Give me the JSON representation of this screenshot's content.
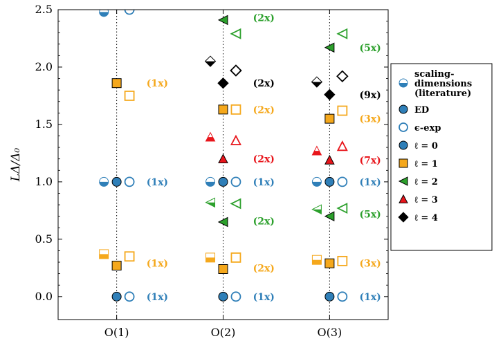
{
  "chart_data": {
    "type": "scatter",
    "ylabel": "LΔ/Δ₀",
    "ylim": [
      -0.2,
      2.5
    ],
    "xlim": [
      -0.55,
      2.55
    ],
    "yticks": [
      "0.0",
      "0.5",
      "1.0",
      "1.5",
      "2.0",
      "2.5"
    ],
    "ytick_values": [
      0.0,
      0.5,
      1.0,
      1.5,
      2.0,
      2.5
    ],
    "categories": [
      "O(1)",
      "O(2)",
      "O(3)"
    ],
    "grid": false,
    "legend_placement": "right, outside plot",
    "colors": {
      "l0": "#2f7fb8",
      "l1": "#f5a81c",
      "l2": "#2ca02c",
      "l3": "#e8151b",
      "l4": "#000000",
      "mult_blue": "#2f7fb8",
      "mult_orange": "#f5a81c",
      "mult_green": "#2ca02c",
      "mult_red": "#e8151b",
      "mult_black": "#000000"
    },
    "legend": [
      {
        "label_lines": [
          "scaling-",
          "dimensions",
          "(literature)"
        ],
        "marker": "half",
        "color": "l0"
      },
      {
        "label_lines": [
          "ED"
        ],
        "marker": "circle-filled",
        "color": "l0"
      },
      {
        "label_lines": [
          "ϵ-exp"
        ],
        "marker": "circle-open",
        "color": "l0"
      },
      {
        "label_lines": [
          "ℓ = 0"
        ],
        "marker": "circle-filled",
        "color": "l0"
      },
      {
        "label_lines": [
          "ℓ = 1"
        ],
        "marker": "square-filled",
        "color": "l1"
      },
      {
        "label_lines": [
          "ℓ = 2"
        ],
        "marker": "triangle-left-filled",
        "color": "l2"
      },
      {
        "label_lines": [
          "ℓ = 3"
        ],
        "marker": "triangle-up-filled",
        "color": "l3"
      },
      {
        "label_lines": [
          "ℓ = 4"
        ],
        "marker": "diamond-filled",
        "color": "l4"
      }
    ],
    "series": [
      {
        "source": "literature",
        "group": 0,
        "l": 0,
        "y": 1.0
      },
      {
        "source": "literature",
        "group": 0,
        "l": 1,
        "y": 0.37
      },
      {
        "source": "literature",
        "group": 0,
        "l": 0,
        "y": 2.48
      },
      {
        "source": "ED",
        "group": 0,
        "l": 0,
        "y": 0.0
      },
      {
        "source": "ED",
        "group": 0,
        "l": 0,
        "y": 1.0
      },
      {
        "source": "ED",
        "group": 0,
        "l": 1,
        "y": 0.27
      },
      {
        "source": "ED",
        "group": 0,
        "l": 1,
        "y": 1.86
      },
      {
        "source": "eps",
        "group": 0,
        "l": 0,
        "y": 0.0
      },
      {
        "source": "eps",
        "group": 0,
        "l": 0,
        "y": 1.0
      },
      {
        "source": "eps",
        "group": 0,
        "l": 1,
        "y": 0.35
      },
      {
        "source": "eps",
        "group": 0,
        "l": 1,
        "y": 1.75
      },
      {
        "source": "eps",
        "group": 0,
        "l": 0,
        "y": 2.5
      },
      {
        "source": "literature",
        "group": 1,
        "l": 0,
        "y": 1.0
      },
      {
        "source": "literature",
        "group": 1,
        "l": 1,
        "y": 0.34
      },
      {
        "source": "literature",
        "group": 1,
        "l": 2,
        "y": 0.82
      },
      {
        "source": "literature",
        "group": 1,
        "l": 3,
        "y": 1.39
      },
      {
        "source": "literature",
        "group": 1,
        "l": 4,
        "y": 2.05
      },
      {
        "source": "ED",
        "group": 1,
        "l": 0,
        "y": 0.0
      },
      {
        "source": "ED",
        "group": 1,
        "l": 0,
        "y": 1.0
      },
      {
        "source": "ED",
        "group": 1,
        "l": 1,
        "y": 0.24
      },
      {
        "source": "ED",
        "group": 1,
        "l": 1,
        "y": 1.63
      },
      {
        "source": "ED",
        "group": 1,
        "l": 2,
        "y": 0.65
      },
      {
        "source": "ED",
        "group": 1,
        "l": 2,
        "y": 2.41
      },
      {
        "source": "ED",
        "group": 1,
        "l": 3,
        "y": 1.2
      },
      {
        "source": "ED",
        "group": 1,
        "l": 4,
        "y": 1.86
      },
      {
        "source": "eps",
        "group": 1,
        "l": 0,
        "y": 0.0
      },
      {
        "source": "eps",
        "group": 1,
        "l": 0,
        "y": 1.0
      },
      {
        "source": "eps",
        "group": 1,
        "l": 1,
        "y": 0.34
      },
      {
        "source": "eps",
        "group": 1,
        "l": 1,
        "y": 1.63
      },
      {
        "source": "eps",
        "group": 1,
        "l": 2,
        "y": 0.81
      },
      {
        "source": "eps",
        "group": 1,
        "l": 2,
        "y": 2.29
      },
      {
        "source": "eps",
        "group": 1,
        "l": 3,
        "y": 1.36
      },
      {
        "source": "eps",
        "group": 1,
        "l": 4,
        "y": 1.97
      },
      {
        "source": "literature",
        "group": 2,
        "l": 0,
        "y": 1.0
      },
      {
        "source": "literature",
        "group": 2,
        "l": 1,
        "y": 0.32
      },
      {
        "source": "literature",
        "group": 2,
        "l": 2,
        "y": 0.76
      },
      {
        "source": "literature",
        "group": 2,
        "l": 3,
        "y": 1.27
      },
      {
        "source": "literature",
        "group": 2,
        "l": 4,
        "y": 1.87
      },
      {
        "source": "ED",
        "group": 2,
        "l": 0,
        "y": 0.0
      },
      {
        "source": "ED",
        "group": 2,
        "l": 0,
        "y": 1.0
      },
      {
        "source": "ED",
        "group": 2,
        "l": 1,
        "y": 0.29
      },
      {
        "source": "ED",
        "group": 2,
        "l": 1,
        "y": 1.55
      },
      {
        "source": "ED",
        "group": 2,
        "l": 2,
        "y": 0.7
      },
      {
        "source": "ED",
        "group": 2,
        "l": 2,
        "y": 2.17
      },
      {
        "source": "ED",
        "group": 2,
        "l": 3,
        "y": 1.19
      },
      {
        "source": "ED",
        "group": 2,
        "l": 4,
        "y": 1.76
      },
      {
        "source": "eps",
        "group": 2,
        "l": 0,
        "y": 0.0
      },
      {
        "source": "eps",
        "group": 2,
        "l": 0,
        "y": 1.0
      },
      {
        "source": "eps",
        "group": 2,
        "l": 1,
        "y": 0.31
      },
      {
        "source": "eps",
        "group": 2,
        "l": 1,
        "y": 1.62
      },
      {
        "source": "eps",
        "group": 2,
        "l": 2,
        "y": 0.77
      },
      {
        "source": "eps",
        "group": 2,
        "l": 2,
        "y": 2.29
      },
      {
        "source": "eps",
        "group": 2,
        "l": 3,
        "y": 1.31
      },
      {
        "source": "eps",
        "group": 2,
        "l": 4,
        "y": 1.92
      }
    ],
    "multiplicities": [
      {
        "group": 0,
        "y": 0.0,
        "text": "(1x)",
        "color": "mult_blue"
      },
      {
        "group": 0,
        "y": 1.0,
        "text": "(1x)",
        "color": "mult_blue"
      },
      {
        "group": 0,
        "y": 0.29,
        "text": "(1x)",
        "color": "mult_orange"
      },
      {
        "group": 0,
        "y": 1.86,
        "text": "(1x)",
        "color": "mult_orange"
      },
      {
        "group": 1,
        "y": 0.0,
        "text": "(1x)",
        "color": "mult_blue"
      },
      {
        "group": 1,
        "y": 1.0,
        "text": "(1x)",
        "color": "mult_blue"
      },
      {
        "group": 1,
        "y": 0.25,
        "text": "(2x)",
        "color": "mult_orange"
      },
      {
        "group": 1,
        "y": 1.63,
        "text": "(2x)",
        "color": "mult_orange"
      },
      {
        "group": 1,
        "y": 0.66,
        "text": "(2x)",
        "color": "mult_green"
      },
      {
        "group": 1,
        "y": 2.43,
        "text": "(2x)",
        "color": "mult_green"
      },
      {
        "group": 1,
        "y": 1.2,
        "text": "(2x)",
        "color": "mult_red"
      },
      {
        "group": 1,
        "y": 1.86,
        "text": "(2x)",
        "color": "mult_black"
      },
      {
        "group": 2,
        "y": 0.0,
        "text": "(1x)",
        "color": "mult_blue"
      },
      {
        "group": 2,
        "y": 1.0,
        "text": "(1x)",
        "color": "mult_blue"
      },
      {
        "group": 2,
        "y": 0.29,
        "text": "(3x)",
        "color": "mult_orange"
      },
      {
        "group": 2,
        "y": 1.55,
        "text": "(3x)",
        "color": "mult_orange"
      },
      {
        "group": 2,
        "y": 0.72,
        "text": "(5x)",
        "color": "mult_green"
      },
      {
        "group": 2,
        "y": 2.17,
        "text": "(5x)",
        "color": "mult_green"
      },
      {
        "group": 2,
        "y": 1.19,
        "text": "(7x)",
        "color": "mult_red"
      },
      {
        "group": 2,
        "y": 1.76,
        "text": "(9x)",
        "color": "mult_black"
      }
    ]
  }
}
